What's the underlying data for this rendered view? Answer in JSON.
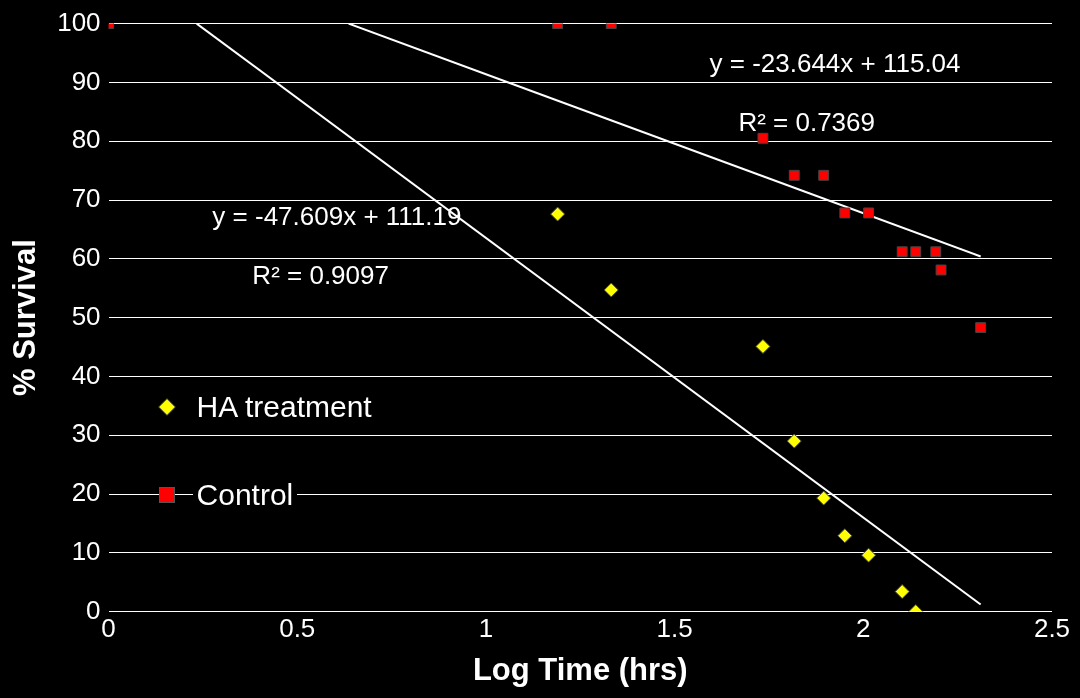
{
  "chart_data": {
    "type": "scatter",
    "xlabel": "Log Time (hrs)",
    "ylabel": "% Survival",
    "xlim": [
      0,
      2.5
    ],
    "xticks": [
      0,
      0.5,
      1,
      1.5,
      2,
      2.5
    ],
    "ylim": [
      0,
      100
    ],
    "yticks": [
      0,
      10,
      20,
      30,
      40,
      50,
      60,
      70,
      80,
      90,
      100
    ],
    "grid": "y",
    "legend": "left",
    "series": [
      {
        "name": "HA treatment",
        "color": "#ffff00",
        "marker": "diamond",
        "x": [
          1.19,
          1.332,
          1.734,
          1.817,
          1.895,
          1.951,
          2.014,
          2.103,
          2.139
        ],
        "values": [
          67.6,
          54.7,
          45.1,
          29.0,
          19.3,
          12.9,
          9.6,
          3.4,
          0
        ]
      },
      {
        "name": "Control",
        "color": "#ff0000",
        "marker": "square",
        "x": [
          0,
          1.19,
          1.332,
          1.734,
          1.817,
          1.895,
          1.951,
          2.014,
          2.103,
          2.139,
          2.192,
          2.206,
          2.311
        ],
        "values": [
          100,
          100,
          100,
          80.5,
          74.2,
          74.2,
          67.8,
          67.8,
          61.2,
          61.2,
          61.2,
          58.1,
          48.3
        ]
      },
      {
        "type": "line",
        "color": "#ffffff",
        "marker": "none",
        "x": [
          0.636,
          2.311
        ],
        "values": [
          100,
          60.4
        ]
      },
      {
        "type": "line",
        "color": "#ffffff",
        "marker": "none",
        "x": [
          0.2335,
          2.311
        ],
        "values": [
          100,
          1.2
        ]
      }
    ],
    "annotations": [
      "y = -23.644x + 115.04",
      "R² = 0.7369",
      "y = -47.609x + 111.19",
      "R² = 0.9097"
    ]
  }
}
